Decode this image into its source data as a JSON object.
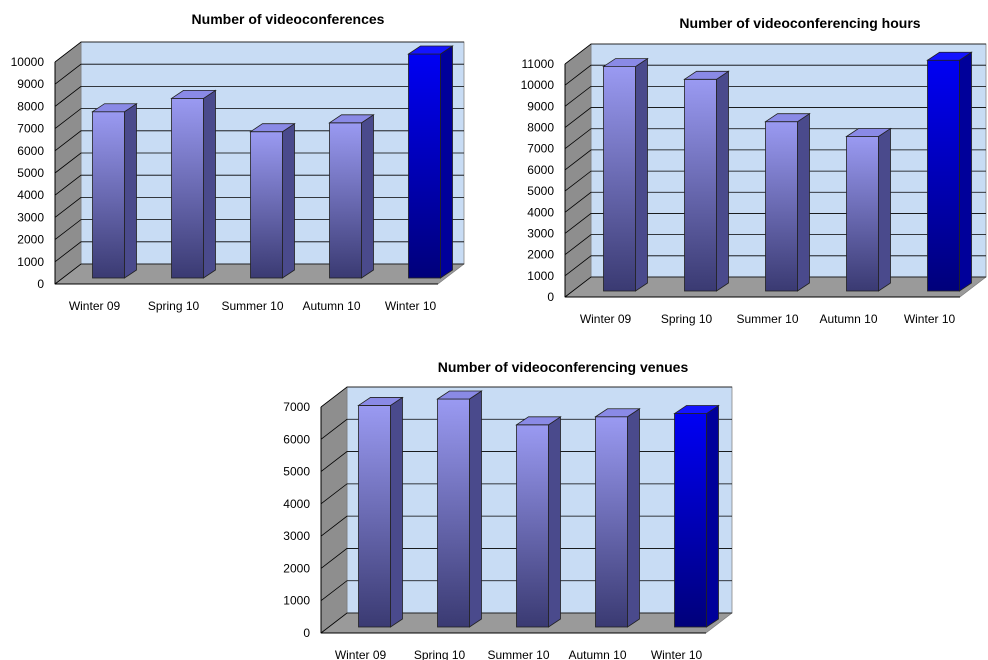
{
  "chart_data": [
    {
      "type": "bar",
      "title": "Number of videoconferences",
      "categories": [
        "Winter 09",
        "Spring 10",
        "Summer 10",
        "Autumn 10",
        "Winter 10"
      ],
      "values": [
        7400,
        8000,
        6500,
        6900,
        10000
      ],
      "ylim": [
        0,
        10000
      ],
      "yticks": [
        "0",
        "1000",
        "2000",
        "3000",
        "4000",
        "5000",
        "6000",
        "7000",
        "8000",
        "9000",
        "10000"
      ],
      "grid": true,
      "legend": "none",
      "colors": [
        "#8a8ae6",
        "#8a8ae6",
        "#8a8ae6",
        "#8a8ae6",
        "#0000e0"
      ]
    },
    {
      "type": "bar",
      "title": "Number of videoconferencing hours",
      "categories": [
        "Winter 09",
        "Spring 10",
        "Summer 10",
        "Autumn 10",
        "Winter 10"
      ],
      "values": [
        10500,
        9900,
        7900,
        7200,
        10800
      ],
      "ylim": [
        0,
        11000
      ],
      "yticks": [
        "0",
        "1000",
        "2000",
        "3000",
        "4000",
        "5000",
        "6000",
        "7000",
        "8000",
        "9000",
        "10000",
        "11000"
      ],
      "grid": true,
      "legend": "none",
      "colors": [
        "#8a8ae6",
        "#8a8ae6",
        "#8a8ae6",
        "#8a8ae6",
        "#0000e0"
      ]
    },
    {
      "type": "bar",
      "title": "Number of videoconferencing venues",
      "categories": [
        "Winter 09",
        "Spring 10",
        "Summer 10",
        "Autumn 10",
        "Winter 10"
      ],
      "values": [
        6800,
        7000,
        6200,
        6450,
        6550
      ],
      "ylim": [
        0,
        7000
      ],
      "yticks": [
        "0",
        "1000",
        "2000",
        "3000",
        "4000",
        "5000",
        "6000",
        "7000"
      ],
      "grid": true,
      "legend": "none",
      "colors": [
        "#8a8ae6",
        "#8a8ae6",
        "#8a8ae6",
        "#8a8ae6",
        "#0000e0"
      ]
    }
  ]
}
